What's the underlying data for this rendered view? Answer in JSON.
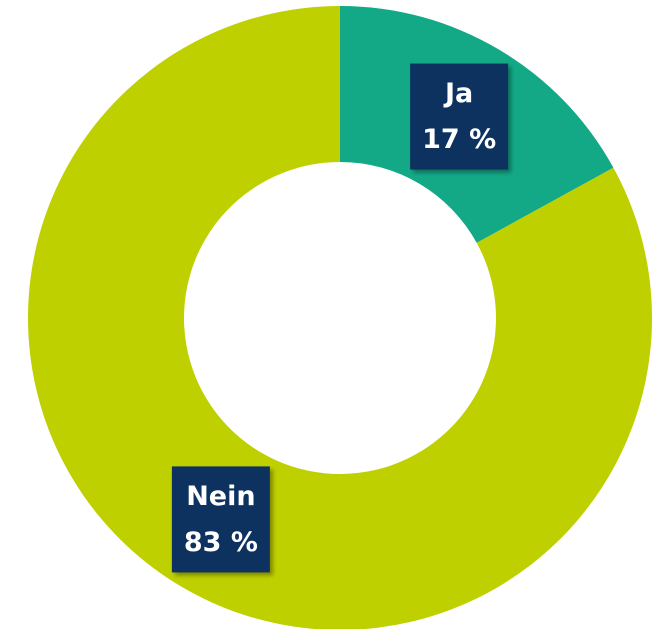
{
  "chart_data": {
    "type": "donut",
    "categories": [
      "Ja",
      "Nein"
    ],
    "values": [
      17,
      83
    ],
    "value_labels": [
      "17 %",
      "83 %"
    ],
    "colors": [
      "#13a987",
      "#bfd000"
    ],
    "label_box_color": "#0d3160"
  }
}
